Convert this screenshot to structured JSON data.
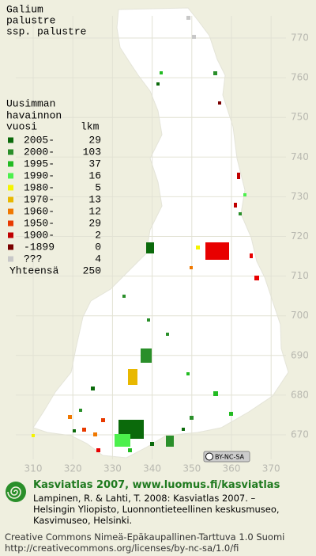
{
  "map": {
    "title": [
      "Galium",
      "palustre",
      "ssp. palustre"
    ],
    "legend": {
      "heading": [
        "Uusimman",
        "havainnon"
      ],
      "col_year": "vuosi",
      "col_count": "lkm",
      "rows": [
        {
          "label": "2005-",
          "count": 29,
          "color": "#0b6a0b"
        },
        {
          "label": "2000-",
          "count": 103,
          "color": "#2a8f2a"
        },
        {
          "label": "1995-",
          "count": 37,
          "color": "#22bb22"
        },
        {
          "label": "1990-",
          "count": 16,
          "color": "#4cf04c"
        },
        {
          "label": "1980-",
          "count": 5,
          "color": "#f4f400"
        },
        {
          "label": "1970-",
          "count": 13,
          "color": "#e8b800"
        },
        {
          "label": "1960-",
          "count": 12,
          "color": "#f07800"
        },
        {
          "label": "1950-",
          "count": 29,
          "color": "#e83a00"
        },
        {
          "label": "1900-",
          "count": 2,
          "color": "#c00000"
        },
        {
          "label": "-1899",
          "count": 0,
          "color": "#7a0000"
        },
        {
          "label": "???",
          "count": 4,
          "color": "#c8c8c8"
        }
      ],
      "total_label": "Yhteensä",
      "total": 250
    },
    "grid": {
      "y_labels": [
        770,
        760,
        750,
        740,
        730,
        720,
        710,
        700,
        690,
        680,
        670
      ],
      "x_labels": [
        310,
        320,
        330,
        340,
        350,
        360,
        370
      ]
    },
    "badge": "BY-NC-SA"
  },
  "footer": {
    "title": "Kasviatlas 2007, www.luomus.fi/kasviatlas",
    "citation": [
      "Lampinen, R. & Lahti, T. 2008: Kasviatlas 2007. –",
      "Helsingin Yliopisto, Luonnontieteellinen keskusmuseo,",
      "Kasvimuseo, Helsinki."
    ],
    "license": [
      "Creative Commons Nimeä-Epäkaupallinen-Tarttuva 1.0 Suomi",
      "http://creativecommons.org/licenses/by-nc-sa/1.0/fi"
    ]
  }
}
